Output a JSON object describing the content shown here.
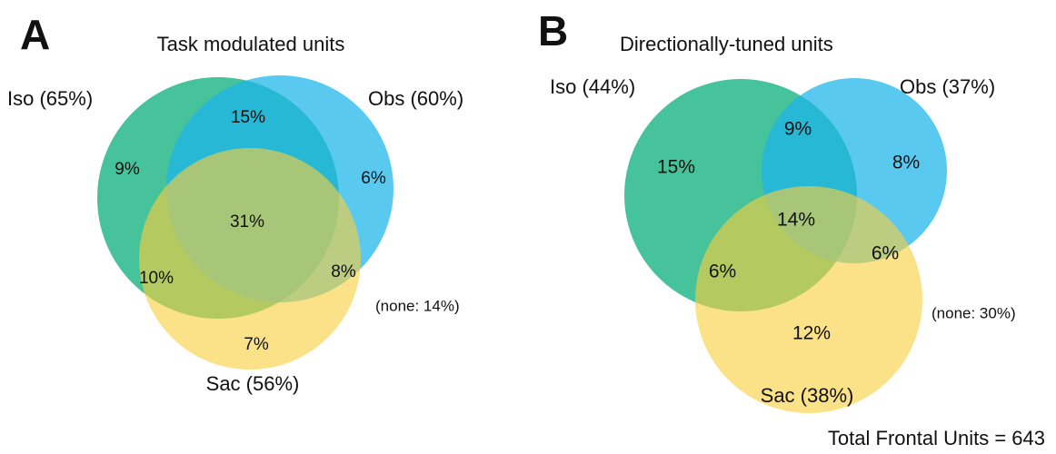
{
  "panels": [
    {
      "letter": "A",
      "title": "Task modulated units",
      "sets": [
        {
          "label": "Iso (65%)"
        },
        {
          "label": "Obs (60%)"
        },
        {
          "label": "Sac (56%)"
        }
      ],
      "regions": {
        "iso_only": "9%",
        "iso_obs": "15%",
        "obs_only": "6%",
        "all": "31%",
        "iso_sac": "10%",
        "obs_sac": "8%",
        "sac_only": "7%"
      },
      "none": "(none: 14%)"
    },
    {
      "letter": "B",
      "title": "Directionally-tuned units",
      "sets": [
        {
          "label": "Iso (44%)"
        },
        {
          "label": "Obs (37%)"
        },
        {
          "label": "Sac (38%)"
        }
      ],
      "regions": {
        "iso_only": "15%",
        "iso_obs": "9%",
        "obs_only": "8%",
        "all": "14%",
        "iso_sac": "6%",
        "obs_sac": "6%",
        "sac_only": "12%"
      },
      "none": "(none: 30%)"
    }
  ],
  "footer": "Total Frontal Units = 643"
}
